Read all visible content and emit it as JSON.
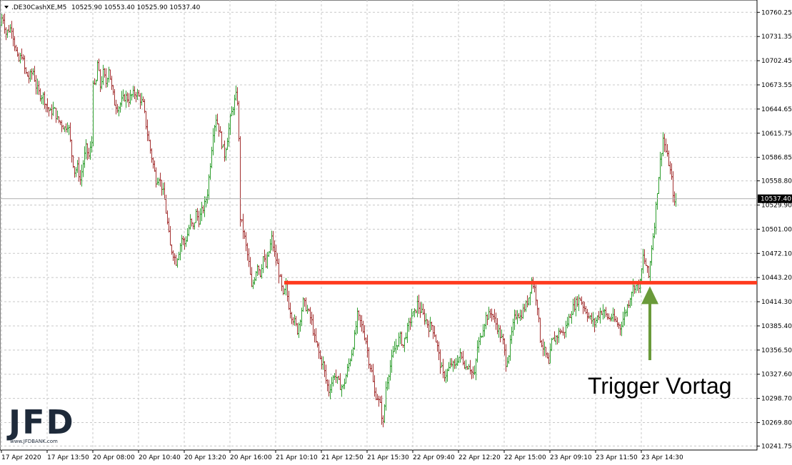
{
  "header": {
    "symbol": ".DE30CashXE,M5",
    "ohlc": "10525.90 10553.40 10525.90 10537.40"
  },
  "annotation": {
    "text": "Trigger Vortag"
  },
  "logo": {
    "text": "JFD",
    "sub": "www.JFDBANK.com"
  },
  "colors": {
    "bull": "#2e9e2e",
    "bear": "#a33030",
    "trigger_line": "#ff3b1f",
    "arrow": "#6a9a3a",
    "grid": "#c8c8c8"
  },
  "chart_data": {
    "type": "ohlc-bar",
    "title": "",
    "price_ticks": [
      "10760.25",
      "10731.35",
      "10702.45",
      "10673.55",
      "10644.65",
      "10615.75",
      "10586.85",
      "10558.80",
      "10529.90",
      "10501.00",
      "10472.10",
      "10443.20",
      "10414.30",
      "10385.40",
      "10356.50",
      "10327.60",
      "10298.70",
      "10269.80",
      "10241.75"
    ],
    "time_ticks": [
      "17 Apr 2020",
      "17 Apr 13:50",
      "20 Apr 08:00",
      "20 Apr 10:40",
      "20 Apr 13:20",
      "20 Apr 16:00",
      "21 Apr 10:10",
      "21 Apr 12:50",
      "21 Apr 15:30",
      "22 Apr 09:40",
      "22 Apr 12:20",
      "22 Apr 15:00",
      "23 Apr 09:10",
      "23 Apr 11:50",
      "23 Apr 14:30"
    ],
    "current_price": "10537.40",
    "trigger_level": 10437,
    "ylim": [
      10237,
      10775
    ],
    "price_path": [
      [
        0,
        10745
      ],
      [
        3,
        10758
      ],
      [
        8,
        10735
      ],
      [
        12,
        10740
      ],
      [
        16,
        10742
      ],
      [
        20,
        10722
      ],
      [
        25,
        10700
      ],
      [
        30,
        10710
      ],
      [
        35,
        10688
      ],
      [
        40,
        10682
      ],
      [
        46,
        10690
      ],
      [
        50,
        10672
      ],
      [
        55,
        10662
      ],
      [
        60,
        10660
      ],
      [
        65,
        10648
      ],
      [
        70,
        10640
      ],
      [
        75,
        10645
      ],
      [
        80,
        10632
      ],
      [
        85,
        10628
      ],
      [
        90,
        10622
      ],
      [
        95,
        10628
      ],
      [
        100,
        10590
      ],
      [
        104,
        10570
      ],
      [
        108,
        10575
      ],
      [
        112,
        10560
      ],
      [
        116,
        10580
      ],
      [
        120,
        10598
      ],
      [
        124,
        10588
      ],
      [
        128,
        10605
      ],
      [
        130,
        10680
      ],
      [
        133,
        10665
      ],
      [
        136,
        10700
      ],
      [
        140,
        10672
      ],
      [
        144,
        10688
      ],
      [
        148,
        10676
      ],
      [
        152,
        10694
      ],
      [
        156,
        10670
      ],
      [
        160,
        10652
      ],
      [
        165,
        10646
      ],
      [
        170,
        10654
      ],
      [
        175,
        10660
      ],
      [
        180,
        10656
      ],
      [
        185,
        10662
      ],
      [
        190,
        10664
      ],
      [
        195,
        10658
      ],
      [
        200,
        10650
      ],
      [
        205,
        10620
      ],
      [
        210,
        10596
      ],
      [
        214,
        10578
      ],
      [
        218,
        10560
      ],
      [
        222,
        10564
      ],
      [
        226,
        10552
      ],
      [
        230,
        10536
      ],
      [
        234,
        10508
      ],
      [
        238,
        10480
      ],
      [
        242,
        10472
      ],
      [
        246,
        10462
      ],
      [
        250,
        10475
      ],
      [
        254,
        10490
      ],
      [
        258,
        10484
      ],
      [
        262,
        10495
      ],
      [
        266,
        10510
      ],
      [
        270,
        10502
      ],
      [
        274,
        10520
      ],
      [
        278,
        10512
      ],
      [
        282,
        10522
      ],
      [
        286,
        10530
      ],
      [
        290,
        10545
      ],
      [
        294,
        10580
      ],
      [
        298,
        10618
      ],
      [
        302,
        10634
      ],
      [
        306,
        10622
      ],
      [
        310,
        10604
      ],
      [
        314,
        10590
      ],
      [
        318,
        10610
      ],
      [
        322,
        10632
      ],
      [
        326,
        10648
      ],
      [
        330,
        10660
      ],
      [
        333,
        10652
      ],
      [
        336,
        10515
      ],
      [
        340,
        10500
      ],
      [
        344,
        10480
      ],
      [
        348,
        10460
      ],
      [
        352,
        10430
      ],
      [
        356,
        10444
      ],
      [
        360,
        10460
      ],
      [
        364,
        10448
      ],
      [
        368,
        10468
      ],
      [
        372,
        10456
      ],
      [
        376,
        10474
      ],
      [
        380,
        10490
      ],
      [
        384,
        10472
      ],
      [
        388,
        10458
      ],
      [
        392,
        10440
      ],
      [
        396,
        10420
      ],
      [
        400,
        10432
      ],
      [
        404,
        10410
      ],
      [
        408,
        10398
      ],
      [
        412,
        10390
      ],
      [
        416,
        10380
      ],
      [
        420,
        10396
      ],
      [
        424,
        10414
      ],
      [
        428,
        10408
      ],
      [
        432,
        10400
      ],
      [
        436,
        10390
      ],
      [
        440,
        10370
      ],
      [
        444,
        10360
      ],
      [
        448,
        10346
      ],
      [
        452,
        10340
      ],
      [
        456,
        10320
      ],
      [
        460,
        10308
      ],
      [
        464,
        10318
      ],
      [
        468,
        10328
      ],
      [
        472,
        10320
      ],
      [
        476,
        10314
      ],
      [
        480,
        10312
      ],
      [
        484,
        10326
      ],
      [
        488,
        10340
      ],
      [
        492,
        10354
      ],
      [
        496,
        10372
      ],
      [
        500,
        10398
      ],
      [
        504,
        10390
      ],
      [
        508,
        10380
      ],
      [
        512,
        10368
      ],
      [
        516,
        10344
      ],
      [
        520,
        10330
      ],
      [
        524,
        10305
      ],
      [
        528,
        10300
      ],
      [
        532,
        10290
      ],
      [
        536,
        10268
      ],
      [
        540,
        10312
      ],
      [
        544,
        10330
      ],
      [
        548,
        10345
      ],
      [
        552,
        10358
      ],
      [
        556,
        10366
      ],
      [
        560,
        10372
      ],
      [
        564,
        10362
      ],
      [
        568,
        10376
      ],
      [
        572,
        10386
      ],
      [
        576,
        10398
      ],
      [
        580,
        10400
      ],
      [
        584,
        10412
      ],
      [
        588,
        10404
      ],
      [
        592,
        10398
      ],
      [
        596,
        10392
      ],
      [
        600,
        10384
      ],
      [
        604,
        10386
      ],
      [
        608,
        10376
      ],
      [
        612,
        10360
      ],
      [
        616,
        10340
      ],
      [
        620,
        10326
      ],
      [
        624,
        10328
      ],
      [
        628,
        10334
      ],
      [
        632,
        10340
      ],
      [
        636,
        10336
      ],
      [
        640,
        10346
      ],
      [
        644,
        10350
      ],
      [
        648,
        10344
      ],
      [
        652,
        10336
      ],
      [
        656,
        10340
      ],
      [
        660,
        10330
      ],
      [
        664,
        10326
      ],
      [
        668,
        10360
      ],
      [
        672,
        10370
      ],
      [
        676,
        10384
      ],
      [
        680,
        10396
      ],
      [
        684,
        10398
      ],
      [
        688,
        10402
      ],
      [
        692,
        10392
      ],
      [
        696,
        10384
      ],
      [
        700,
        10374
      ],
      [
        704,
        10366
      ],
      [
        708,
        10342
      ],
      [
        712,
        10352
      ],
      [
        716,
        10376
      ],
      [
        720,
        10394
      ],
      [
        724,
        10402
      ],
      [
        728,
        10396
      ],
      [
        732,
        10404
      ],
      [
        736,
        10410
      ],
      [
        740,
        10420
      ],
      [
        744,
        10440
      ],
      [
        748,
        10430
      ],
      [
        752,
        10410
      ],
      [
        756,
        10370
      ],
      [
        760,
        10360
      ],
      [
        764,
        10350
      ],
      [
        768,
        10338
      ],
      [
        772,
        10366
      ],
      [
        776,
        10370
      ],
      [
        780,
        10374
      ],
      [
        784,
        10380
      ],
      [
        788,
        10376
      ],
      [
        792,
        10384
      ],
      [
        796,
        10394
      ],
      [
        800,
        10404
      ],
      [
        804,
        10410
      ],
      [
        808,
        10416
      ],
      [
        812,
        10418
      ],
      [
        816,
        10410
      ],
      [
        820,
        10404
      ],
      [
        824,
        10396
      ],
      [
        828,
        10392
      ],
      [
        832,
        10388
      ],
      [
        836,
        10396
      ],
      [
        840,
        10402
      ],
      [
        844,
        10404
      ],
      [
        848,
        10398
      ],
      [
        852,
        10394
      ],
      [
        856,
        10396
      ],
      [
        860,
        10392
      ],
      [
        864,
        10388
      ],
      [
        868,
        10384
      ],
      [
        872,
        10394
      ],
      [
        876,
        10404
      ],
      [
        880,
        10414
      ],
      [
        884,
        10428
      ],
      [
        888,
        10434
      ],
      [
        892,
        10432
      ],
      [
        896,
        10436
      ],
      [
        900,
        10468
      ],
      [
        904,
        10458
      ],
      [
        908,
        10444
      ],
      [
        912,
        10480
      ],
      [
        916,
        10508
      ],
      [
        920,
        10548
      ],
      [
        924,
        10582
      ],
      [
        928,
        10610
      ],
      [
        932,
        10594
      ],
      [
        936,
        10580
      ],
      [
        940,
        10560
      ],
      [
        944,
        10530
      ],
      [
        946,
        10537
      ]
    ]
  }
}
